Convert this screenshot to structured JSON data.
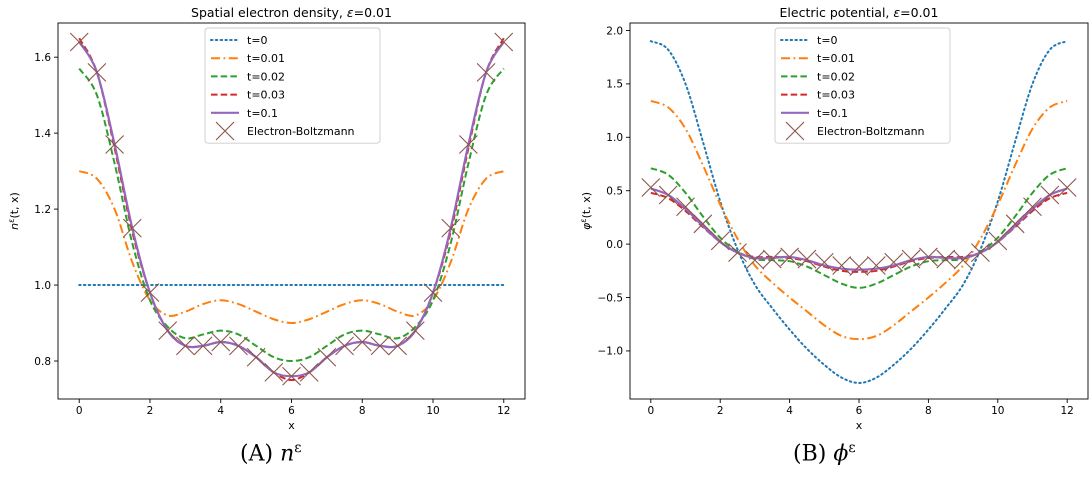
{
  "chart_data": [
    {
      "type": "line",
      "title": "Spatial electron density, ε=0.01",
      "xlabel": "x",
      "ylabel": "n^ε(t, x)",
      "xlim": [
        -0.6,
        12.6
      ],
      "ylim": [
        0.7,
        1.69
      ],
      "xticks": [
        0,
        2,
        4,
        6,
        8,
        10,
        12
      ],
      "yticks": [
        0.8,
        1.0,
        1.2,
        1.4,
        1.6
      ],
      "ytick_labels": [
        "0.8",
        "1.0",
        "1.2",
        "1.4",
        "1.6"
      ],
      "grid": false,
      "legend_position": "top-center",
      "series": [
        {
          "name": "t=0",
          "style": "dotted",
          "color": "#1f77b4",
          "x": [
            0,
            12
          ],
          "y": [
            1.0,
            1.0
          ]
        },
        {
          "name": "t=0.01",
          "style": "dashdot",
          "color": "#ff7f0e",
          "x": [
            0,
            0.5,
            1,
            1.5,
            2,
            2.5,
            3,
            3.5,
            4,
            4.5,
            5,
            5.5,
            6,
            6.5,
            7,
            7.5,
            8,
            8.5,
            9,
            9.5,
            10,
            10.5,
            11,
            11.5,
            12
          ],
          "y": [
            1.3,
            1.28,
            1.2,
            1.06,
            0.96,
            0.92,
            0.93,
            0.95,
            0.96,
            0.95,
            0.93,
            0.91,
            0.9,
            0.91,
            0.93,
            0.95,
            0.96,
            0.95,
            0.93,
            0.92,
            0.96,
            1.06,
            1.2,
            1.28,
            1.3
          ]
        },
        {
          "name": "t=0.02",
          "style": "dashed",
          "color": "#2ca02c",
          "x": [
            0,
            0.5,
            1,
            1.5,
            2,
            2.5,
            3,
            3.5,
            4,
            4.5,
            5,
            5.5,
            6,
            6.5,
            7,
            7.5,
            8,
            8.5,
            9,
            9.5,
            10,
            10.5,
            11,
            11.5,
            12
          ],
          "y": [
            1.57,
            1.5,
            1.32,
            1.11,
            0.96,
            0.89,
            0.86,
            0.87,
            0.88,
            0.87,
            0.84,
            0.81,
            0.8,
            0.81,
            0.84,
            0.87,
            0.88,
            0.87,
            0.86,
            0.89,
            0.96,
            1.11,
            1.32,
            1.5,
            1.57
          ]
        },
        {
          "name": "t=0.03",
          "style": "dashed",
          "color": "#d62728",
          "x": [
            0,
            0.5,
            1,
            1.5,
            2,
            2.5,
            3,
            3.5,
            4,
            4.5,
            5,
            5.5,
            6,
            6.5,
            7,
            7.5,
            8,
            8.5,
            9,
            9.5,
            10,
            10.5,
            11,
            11.5,
            12
          ],
          "y": [
            1.65,
            1.56,
            1.36,
            1.14,
            0.98,
            0.88,
            0.84,
            0.84,
            0.85,
            0.84,
            0.81,
            0.77,
            0.75,
            0.77,
            0.81,
            0.84,
            0.85,
            0.84,
            0.84,
            0.88,
            0.98,
            1.14,
            1.36,
            1.56,
            1.65
          ]
        },
        {
          "name": "t=0.1",
          "style": "solid",
          "color": "#9467bd",
          "x": [
            0,
            0.5,
            1,
            1.5,
            2,
            2.5,
            3,
            3.5,
            4,
            4.5,
            5,
            5.5,
            6,
            6.5,
            7,
            7.5,
            8,
            8.5,
            9,
            9.5,
            10,
            10.5,
            11,
            11.5,
            12
          ],
          "y": [
            1.64,
            1.56,
            1.37,
            1.15,
            0.98,
            0.88,
            0.84,
            0.84,
            0.85,
            0.84,
            0.81,
            0.77,
            0.76,
            0.77,
            0.81,
            0.84,
            0.85,
            0.84,
            0.84,
            0.88,
            0.98,
            1.15,
            1.37,
            1.56,
            1.64
          ]
        },
        {
          "name": "Electron-Boltzmann",
          "style": "markers-x",
          "color": "#8c564b",
          "x": [
            0,
            0.5,
            1,
            1.5,
            2,
            2.5,
            3,
            3.5,
            4,
            4.5,
            5,
            5.5,
            6,
            6.5,
            7,
            7.5,
            8,
            8.5,
            9,
            9.5,
            10,
            10.5,
            11,
            11.5,
            12
          ],
          "y": [
            1.64,
            1.56,
            1.37,
            1.15,
            0.98,
            0.88,
            0.84,
            0.84,
            0.85,
            0.84,
            0.81,
            0.77,
            0.76,
            0.77,
            0.81,
            0.84,
            0.85,
            0.84,
            0.84,
            0.88,
            0.98,
            1.15,
            1.37,
            1.56,
            1.64
          ]
        }
      ]
    },
    {
      "type": "line",
      "title": "Electric potential, ε=0.01",
      "xlabel": "x",
      "ylabel": "φ^ε(t, x)",
      "xlim": [
        -0.6,
        12.6
      ],
      "ylim": [
        -1.45,
        2.07
      ],
      "xticks": [
        0,
        2,
        4,
        6,
        8,
        10,
        12
      ],
      "yticks": [
        -1.0,
        -0.5,
        0.0,
        0.5,
        1.0,
        1.5,
        2.0
      ],
      "ytick_labels": [
        "−1.0",
        "−0.5",
        "0.0",
        "0.5",
        "1.0",
        "1.5",
        "2.0"
      ],
      "grid": false,
      "legend_position": "top-center",
      "series": [
        {
          "name": "t=0",
          "style": "dotted",
          "color": "#1f77b4",
          "x": [
            0,
            0.5,
            1,
            1.5,
            2,
            2.5,
            3,
            3.5,
            4,
            4.5,
            5,
            5.5,
            6,
            6.5,
            7,
            7.5,
            8,
            8.5,
            9,
            9.5,
            10,
            10.5,
            11,
            11.5,
            12
          ],
          "y": [
            1.9,
            1.82,
            1.5,
            0.96,
            0.4,
            -0.05,
            -0.38,
            -0.6,
            -0.8,
            -0.98,
            -1.13,
            -1.25,
            -1.3,
            -1.25,
            -1.13,
            -0.98,
            -0.8,
            -0.6,
            -0.38,
            -0.05,
            0.4,
            0.96,
            1.5,
            1.82,
            1.9
          ]
        },
        {
          "name": "t=0.01",
          "style": "dashdot",
          "color": "#ff7f0e",
          "x": [
            0,
            0.5,
            1,
            1.5,
            2,
            2.5,
            3,
            3.5,
            4,
            4.5,
            5,
            5.5,
            6,
            6.5,
            7,
            7.5,
            8,
            8.5,
            9,
            9.5,
            10,
            10.5,
            11,
            11.5,
            12
          ],
          "y": [
            1.34,
            1.28,
            1.08,
            0.74,
            0.37,
            0.05,
            -0.2,
            -0.36,
            -0.5,
            -0.63,
            -0.76,
            -0.86,
            -0.89,
            -0.86,
            -0.76,
            -0.63,
            -0.5,
            -0.36,
            -0.2,
            0.05,
            0.37,
            0.74,
            1.08,
            1.28,
            1.34
          ]
        },
        {
          "name": "t=0.02",
          "style": "dashed",
          "color": "#2ca02c",
          "x": [
            0,
            0.5,
            1,
            1.5,
            2,
            2.5,
            3,
            3.5,
            4,
            4.5,
            5,
            5.5,
            6,
            6.5,
            7,
            7.5,
            8,
            8.5,
            9,
            9.5,
            10,
            10.5,
            11,
            11.5,
            12
          ],
          "y": [
            0.71,
            0.65,
            0.48,
            0.26,
            0.06,
            -0.07,
            -0.14,
            -0.15,
            -0.16,
            -0.21,
            -0.29,
            -0.37,
            -0.41,
            -0.37,
            -0.29,
            -0.21,
            -0.16,
            -0.15,
            -0.14,
            -0.07,
            0.06,
            0.26,
            0.48,
            0.65,
            0.71
          ]
        },
        {
          "name": "t=0.03",
          "style": "dashed",
          "color": "#d62728",
          "x": [
            0,
            0.5,
            1,
            1.5,
            2,
            2.5,
            3,
            3.5,
            4,
            4.5,
            5,
            5.5,
            6,
            6.5,
            7,
            7.5,
            8,
            8.5,
            9,
            9.5,
            10,
            10.5,
            11,
            11.5,
            12
          ],
          "y": [
            0.48,
            0.43,
            0.31,
            0.16,
            0.02,
            -0.08,
            -0.12,
            -0.12,
            -0.13,
            -0.16,
            -0.21,
            -0.25,
            -0.26,
            -0.25,
            -0.21,
            -0.16,
            -0.13,
            -0.12,
            -0.12,
            -0.08,
            0.02,
            0.16,
            0.31,
            0.43,
            0.48
          ]
        },
        {
          "name": "t=0.1",
          "style": "solid",
          "color": "#9467bd",
          "x": [
            0,
            0.5,
            1,
            1.5,
            2,
            2.5,
            3,
            3.5,
            4,
            4.5,
            5,
            5.5,
            6,
            6.5,
            7,
            7.5,
            8,
            8.5,
            9,
            9.5,
            10,
            10.5,
            11,
            11.5,
            12
          ],
          "y": [
            0.52,
            0.46,
            0.33,
            0.17,
            0.02,
            -0.08,
            -0.13,
            -0.13,
            -0.12,
            -0.15,
            -0.2,
            -0.23,
            -0.24,
            -0.23,
            -0.2,
            -0.15,
            -0.12,
            -0.13,
            -0.13,
            -0.08,
            0.02,
            0.17,
            0.33,
            0.46,
            0.52
          ]
        },
        {
          "name": "Electron-Boltzmann",
          "style": "markers-x",
          "color": "#8c564b",
          "x": [
            0,
            0.5,
            1,
            1.5,
            2,
            2.5,
            3,
            3.5,
            4,
            4.5,
            5,
            5.5,
            6,
            6.5,
            7,
            7.5,
            8,
            8.5,
            9,
            9.5,
            10,
            10.5,
            11,
            11.5,
            12
          ],
          "y": [
            0.53,
            0.46,
            0.35,
            0.19,
            0.03,
            -0.08,
            -0.15,
            -0.14,
            -0.12,
            -0.14,
            -0.17,
            -0.2,
            -0.21,
            -0.2,
            -0.17,
            -0.14,
            -0.12,
            -0.14,
            -0.15,
            -0.08,
            0.03,
            0.19,
            0.35,
            0.46,
            0.53
          ]
        }
      ]
    }
  ],
  "captions": [
    {
      "label": "(A)",
      "symbol": "n",
      "sup": "ε"
    },
    {
      "label": "(B)",
      "symbol": "ϕ",
      "sup": "ε"
    }
  ]
}
